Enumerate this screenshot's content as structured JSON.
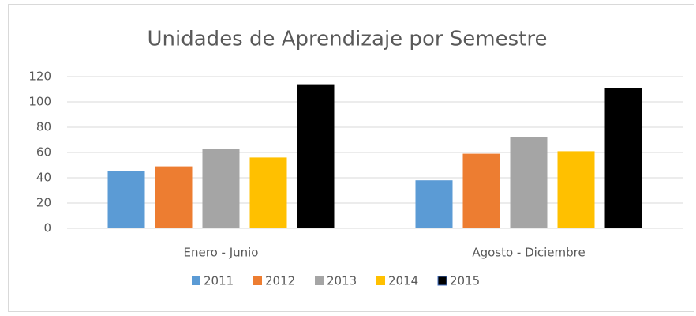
{
  "chart_data": {
    "type": "bar",
    "title": "Unidades de Aprendizaje por Semestre",
    "categories": [
      "Enero - Junio",
      "Agosto - Diciembre"
    ],
    "series": [
      {
        "name": "2011",
        "color": "#5b9bd5",
        "values": [
          45,
          38
        ]
      },
      {
        "name": "2012",
        "color": "#ed7d31",
        "values": [
          49,
          59
        ]
      },
      {
        "name": "2013",
        "color": "#a5a5a5",
        "values": [
          63,
          72
        ]
      },
      {
        "name": "2014",
        "color": "#ffc000",
        "values": [
          56,
          61
        ]
      },
      {
        "name": "2015",
        "color": "#000000",
        "values": [
          114,
          111
        ]
      }
    ],
    "ylim": [
      0,
      120
    ],
    "yticks": [
      0,
      20,
      40,
      60,
      80,
      100,
      120
    ],
    "grid": true,
    "legend": "bottom"
  }
}
